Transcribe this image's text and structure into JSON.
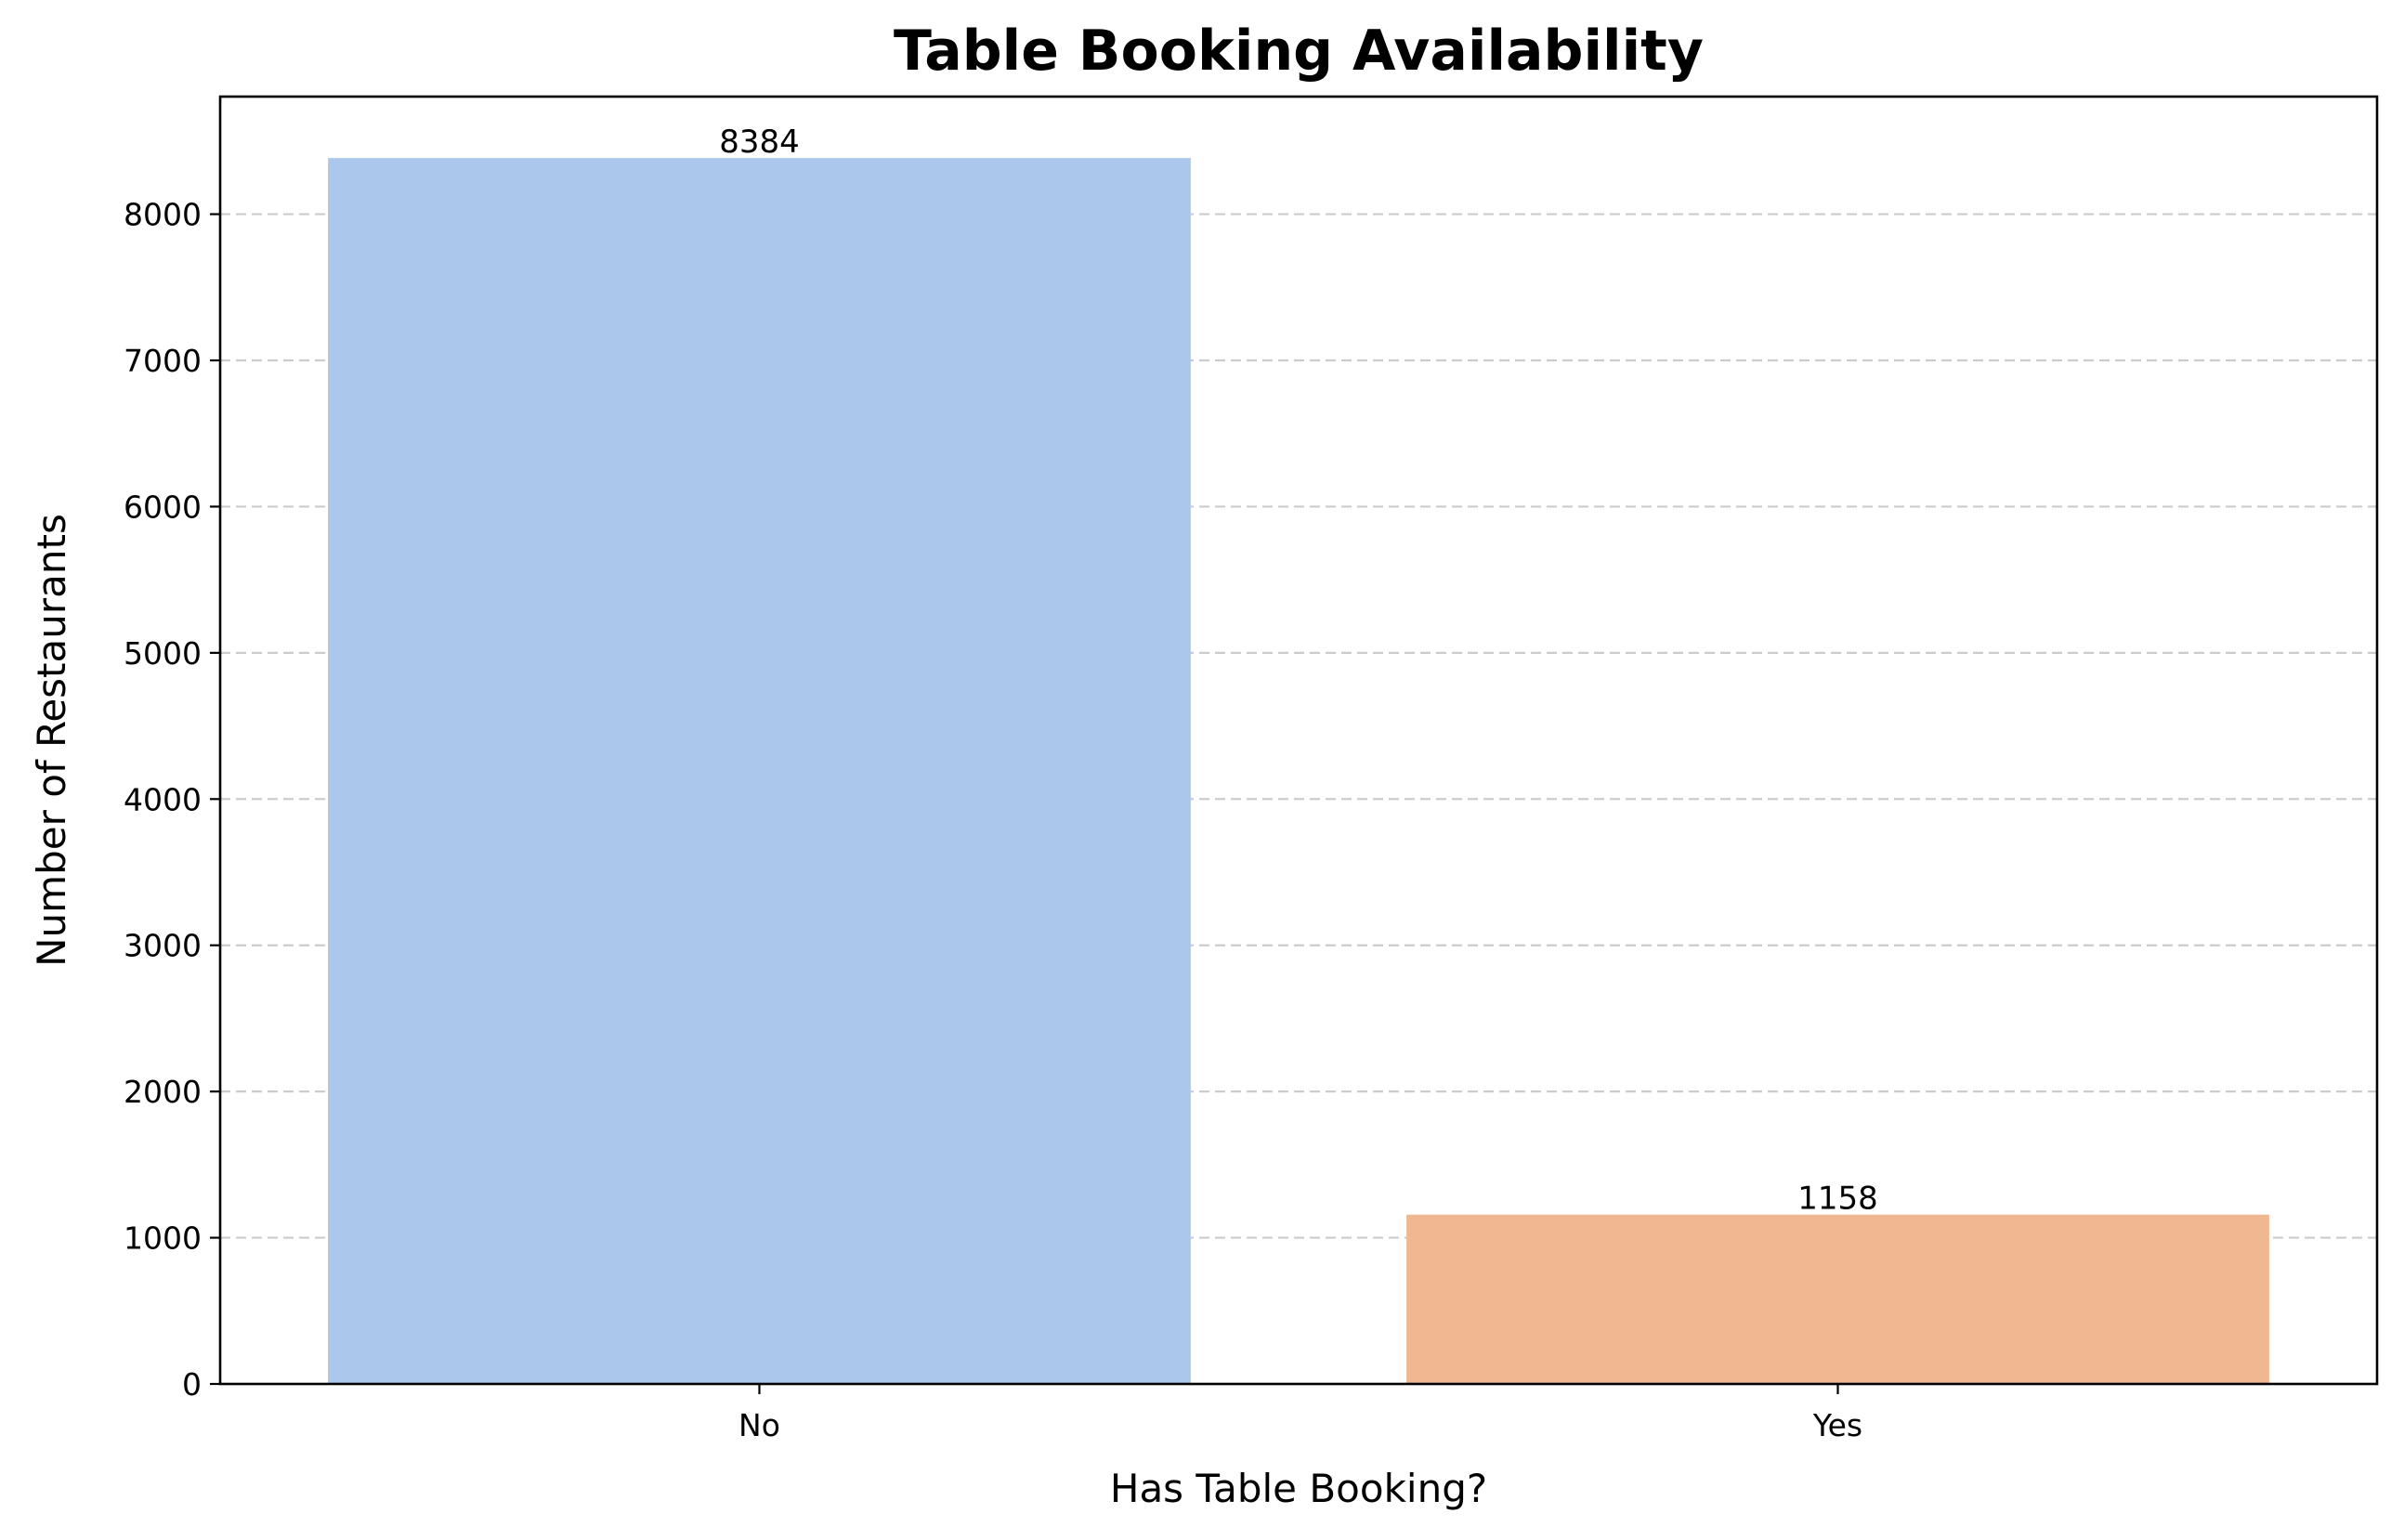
{
  "chart_data": {
    "type": "bar",
    "title": "Table Booking Availability",
    "xlabel": "Has Table Booking?",
    "ylabel": "Number of Restaurants",
    "categories": [
      "No",
      "Yes"
    ],
    "values": [
      8384,
      1158
    ],
    "value_labels": [
      "8384",
      "1158"
    ],
    "colors": [
      "#abc8ec",
      "#f0b891"
    ],
    "ylim": [
      0,
      8804
    ],
    "yticks": [
      0,
      1000,
      2000,
      3000,
      4000,
      5000,
      6000,
      7000,
      8000
    ],
    "ytick_labels": [
      "0",
      "1000",
      "2000",
      "3000",
      "4000",
      "5000",
      "6000",
      "7000",
      "8000"
    ],
    "grid": "y-dashed"
  }
}
